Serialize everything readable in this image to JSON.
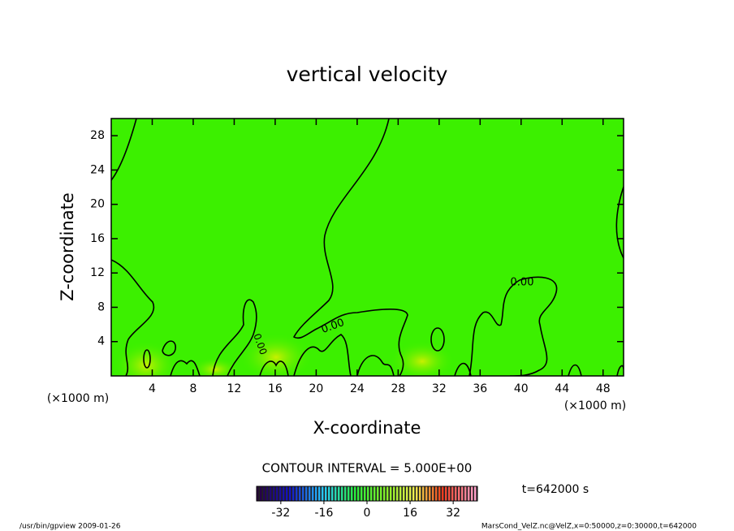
{
  "chart_data": {
    "type": "contour",
    "title": "vertical velocity",
    "xlabel": "X-coordinate",
    "ylabel": "Z-coordinate",
    "x_unit_label": "(×1000 m)",
    "xlim": [
      0,
      50
    ],
    "ylim": [
      0,
      30
    ],
    "xticks": [
      4,
      8,
      12,
      16,
      20,
      24,
      28,
      32,
      36,
      40,
      44,
      48
    ],
    "yticks": [
      4,
      8,
      12,
      16,
      20,
      24,
      28
    ],
    "contour_labels": [
      "0.00",
      "0.00",
      "0.00"
    ],
    "contour_interval": "CONTOUR INTERVAL = 5.000E+00",
    "time_label": "t=642000 s",
    "colorbar": {
      "lim": [
        -41,
        41
      ],
      "ticks": [
        -32,
        -16,
        0,
        16,
        32
      ]
    },
    "footer_left": "/usr/bin/gpview   2009-01-26",
    "footer_right": "MarsCond_VelZ.nc@VelZ,x=0:50000,z=0:30000,t=642000"
  }
}
